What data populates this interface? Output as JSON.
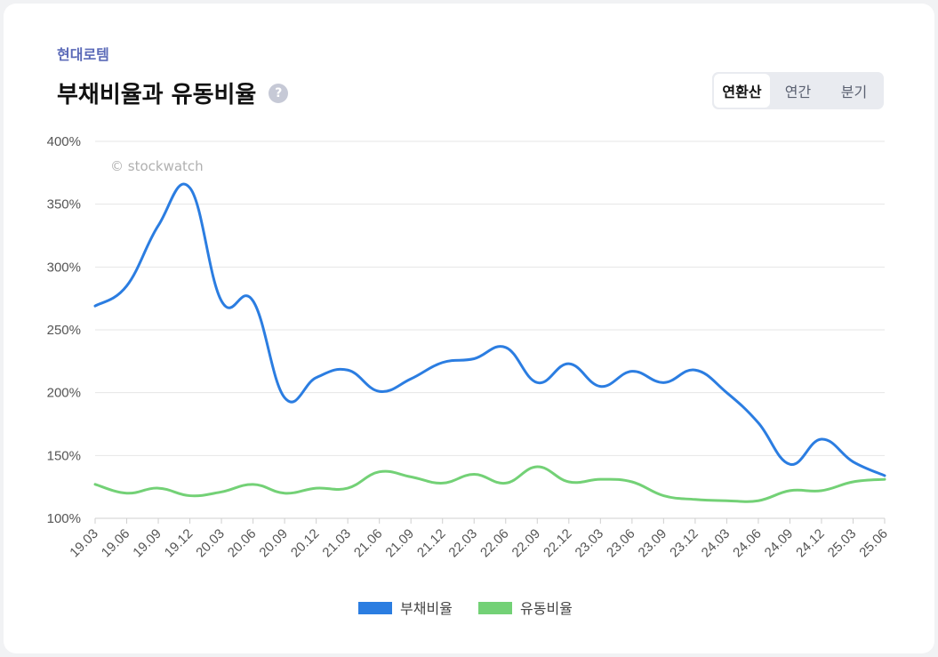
{
  "header": {
    "company": "현대로템",
    "title": "부채비율과 유동비율",
    "help_glyph": "?"
  },
  "toggle": {
    "options": [
      {
        "label": "연환산",
        "active": true
      },
      {
        "label": "연간",
        "active": false
      },
      {
        "label": "분기",
        "active": false
      }
    ]
  },
  "watermark": "© stockwatch",
  "chart_data": {
    "type": "line",
    "title": "부채비율과 유동비율",
    "x": [
      "19.03",
      "19.06",
      "19.09",
      "19.12",
      "20.03",
      "20.06",
      "20.09",
      "20.12",
      "21.03",
      "21.06",
      "21.09",
      "21.12",
      "22.03",
      "22.06",
      "22.09",
      "22.12",
      "23.03",
      "23.06",
      "23.09",
      "23.12",
      "24.03",
      "24.06",
      "24.09",
      "24.12",
      "25.03",
      "25.06"
    ],
    "series": [
      {
        "name": "부채비율",
        "color": "#2b7de1",
        "values": [
          269,
          285,
          333,
          363,
          273,
          273,
          196,
          212,
          218,
          201,
          211,
          224,
          227,
          236,
          208,
          223,
          205,
          217,
          208,
          218,
          200,
          176,
          143,
          163,
          145,
          134
        ]
      },
      {
        "name": "유동비율",
        "color": "#73d176",
        "values": [
          127,
          120,
          124,
          118,
          121,
          127,
          120,
          124,
          124,
          137,
          133,
          128,
          135,
          128,
          141,
          129,
          131,
          129,
          118,
          115,
          114,
          114,
          122,
          122,
          129,
          131
        ]
      }
    ],
    "y_ticks": [
      "100%",
      "150%",
      "200%",
      "250%",
      "300%",
      "350%",
      "400%"
    ],
    "ylim": [
      100,
      400
    ],
    "grid": true,
    "legend": "bottom-center"
  }
}
